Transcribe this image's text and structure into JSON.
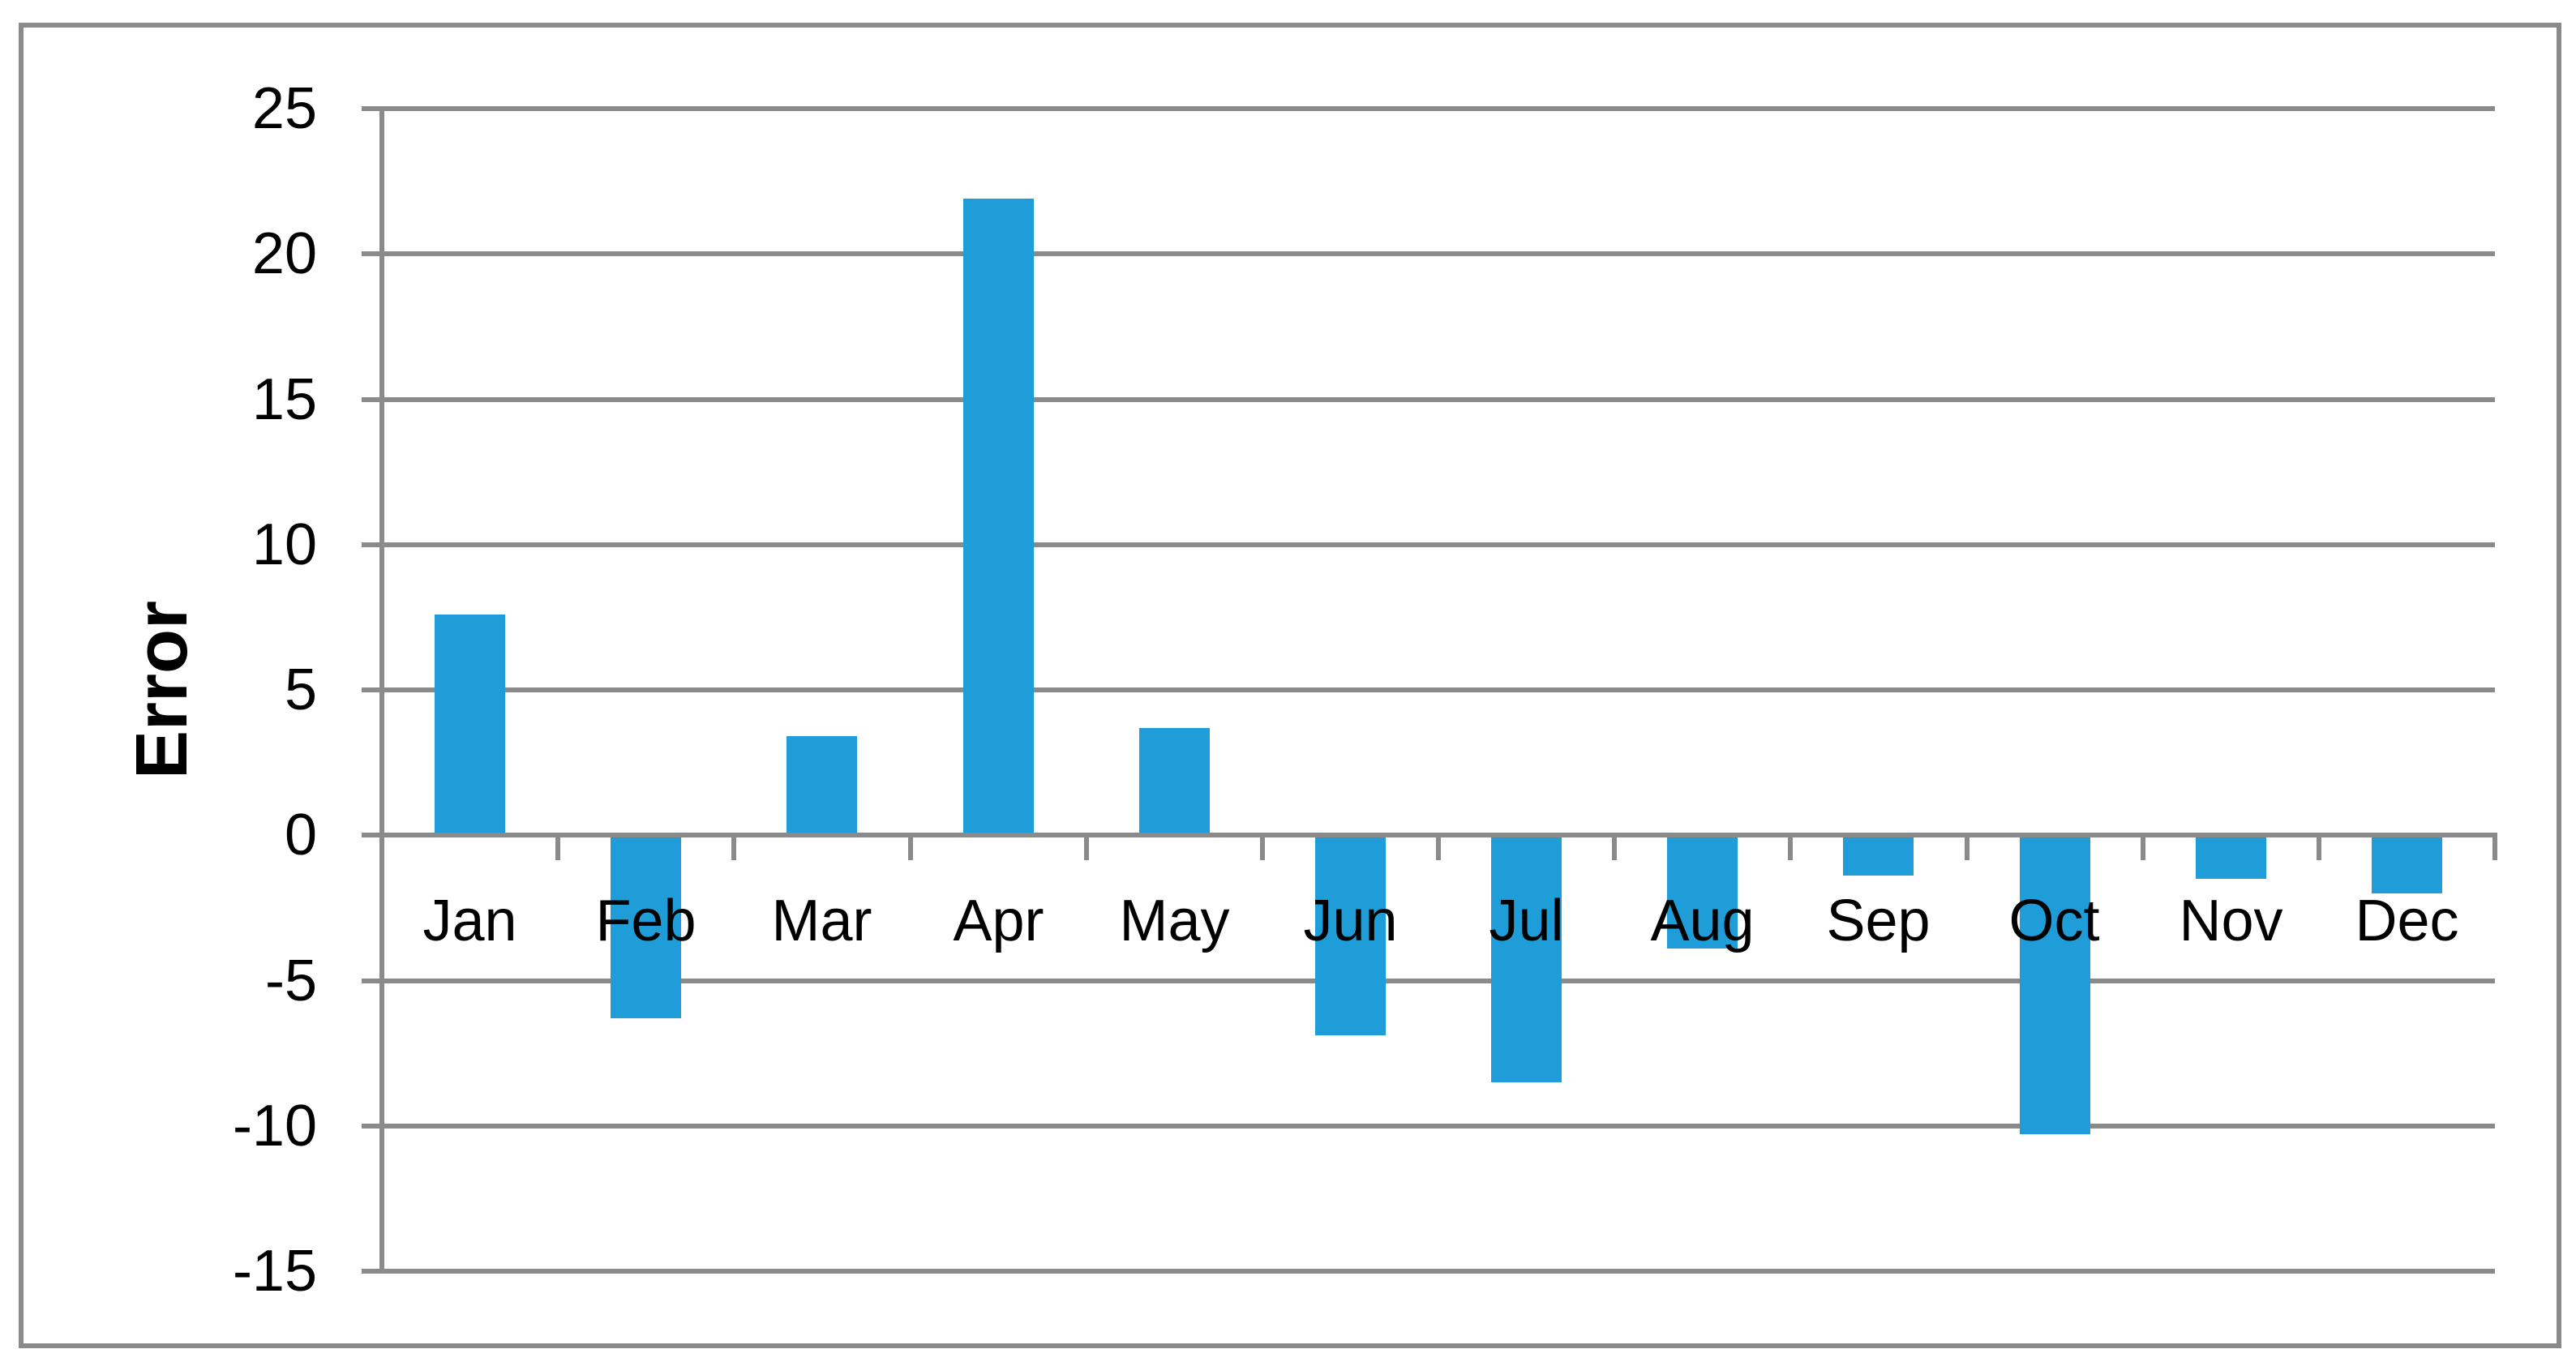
{
  "chart_data": {
    "type": "bar",
    "title": "",
    "xlabel": "",
    "ylabel": "Error",
    "categories": [
      "Jan",
      "Feb",
      "Mar",
      "Apr",
      "May",
      "Jun",
      "Jul",
      "Aug",
      "Sep",
      "Oct",
      "Nov",
      "Dec"
    ],
    "values": [
      7.6,
      -6.3,
      3.4,
      21.9,
      3.7,
      -6.9,
      -8.5,
      -3.9,
      -1.4,
      -10.3,
      -1.5,
      -2.0
    ],
    "yticks": [
      25,
      20,
      15,
      10,
      5,
      0,
      -5,
      -10,
      -15
    ],
    "ylim": [
      -15,
      25
    ],
    "grid": true,
    "legend": false,
    "bar_color": "#1F9DD9",
    "grid_color": "#8A8A8A",
    "axis_color": "#8A8A8A",
    "border_color": "#8A8A8A",
    "text_color": "#000000",
    "background_color": "#FFFFFF"
  }
}
